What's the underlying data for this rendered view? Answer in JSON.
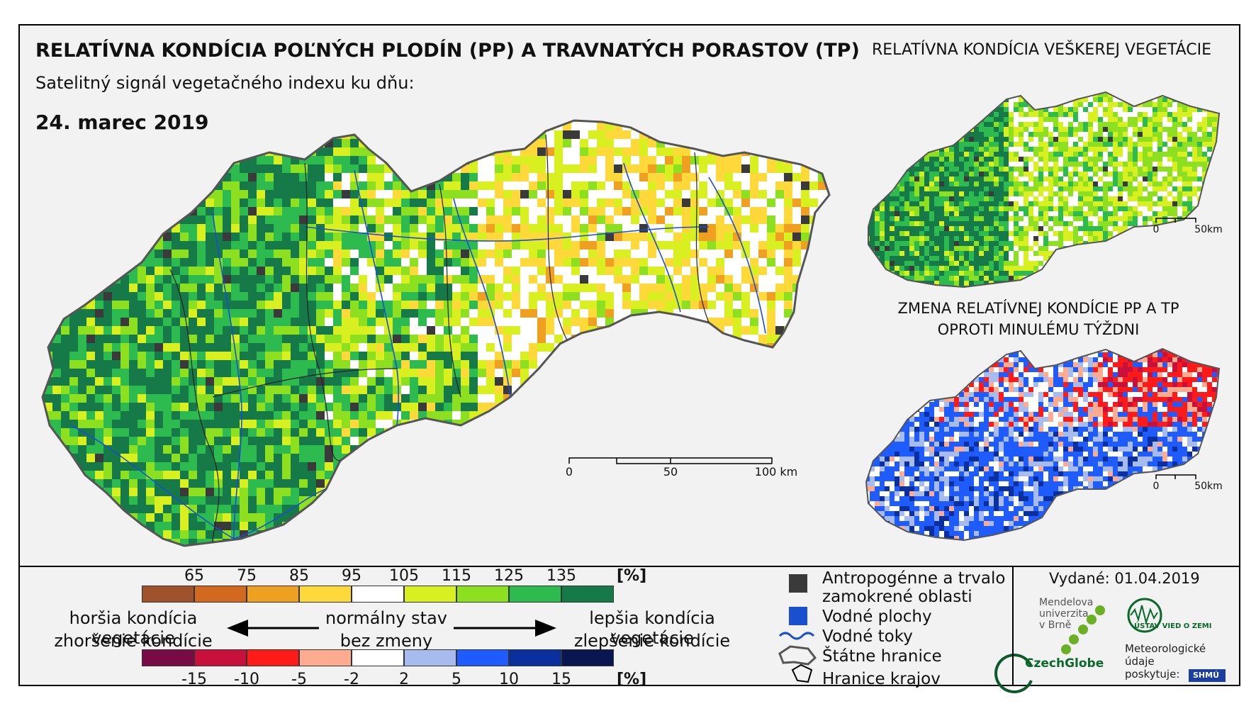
{
  "title": "RELATÍVNA KONDÍCIA POĽNÝCH PLODÍN (PP) A TRAVNATÝCH PORASTOV (TP)",
  "subtitle": "Satelitný signál vegetačného indexu ku dňu:",
  "date": "24. marec 2019",
  "right_top_title": "RELATÍVNA KONDÍCIA VEŠKEREJ VEGETÁCIE",
  "right_bottom_title_line1": "ZMENA RELATÍVNEJ KONDÍCIE PP A TP",
  "right_bottom_title_line2": "OPROTI MINULÉMU TÝŽDNI",
  "main_scalebar": {
    "labels": [
      "0",
      "50",
      "100 km"
    ]
  },
  "small_scalebar": {
    "labels": [
      "0",
      "50km"
    ]
  },
  "condition_legend": {
    "unit": "[%]",
    "tick_labels": [
      "65",
      "75",
      "85",
      "95",
      "105",
      "115",
      "125",
      "135"
    ],
    "colors": [
      "#a0522d",
      "#d2691e",
      "#f0a020",
      "#ffd83a",
      "#ffffff",
      "#d8f020",
      "#8de020",
      "#2dbb50",
      "#157a48"
    ]
  },
  "change_legend": {
    "unit": "[%]",
    "tick_labels": [
      "-15",
      "-10",
      "-5",
      "-2",
      "2",
      "5",
      "10",
      "15"
    ],
    "colors": [
      "#7a0a45",
      "#c8103c",
      "#ff1a1a",
      "#ffab90",
      "#ffffff",
      "#a8bbee",
      "#1e5cff",
      "#0a2f9e",
      "#0a1650"
    ]
  },
  "arrow_labels": {
    "worse_condition": "horšia kondícia vegetácie",
    "worsened_condition": "zhoršenie kondície",
    "normal_state": "normálny stav",
    "no_change": "bez zmeny",
    "better_condition": "lepšia kondícia vegetácie",
    "improved_condition": "zlepšenie kondície"
  },
  "map_key": {
    "anthropogenic": "Antropogénne a trvalo",
    "anthropogenic_line2": "zamokrené oblasti",
    "water_areas": "Vodné plochy",
    "water_streams": "Vodné toky",
    "state_borders": "Štátne hranice",
    "region_borders": "Hranice krajov"
  },
  "issued": "Vydané: 01.04.2019",
  "logos": {
    "mendel": "Mendelova\nuniverzita\nv Brně",
    "czechglobe": "CzechGlobe",
    "ustav": "ÚSTAV VIED O ZEMI",
    "provided_by": "Meteorologické\núdaje\nposkytuje:",
    "shmu": "SHMÚ"
  },
  "palette": {
    "map_fill": [
      "#157a48",
      "#2dbb50",
      "#8de020",
      "#d8f020",
      "#ffffff",
      "#ffd83a",
      "#f0a020"
    ],
    "change_fill": [
      "#1e5cff",
      "#0a2f9e",
      "#a8bbee",
      "#ffffff",
      "#ffab90",
      "#ff1a1a",
      "#c8103c"
    ],
    "water": "#1a4fd0",
    "anthro": "#3a3a3a"
  }
}
